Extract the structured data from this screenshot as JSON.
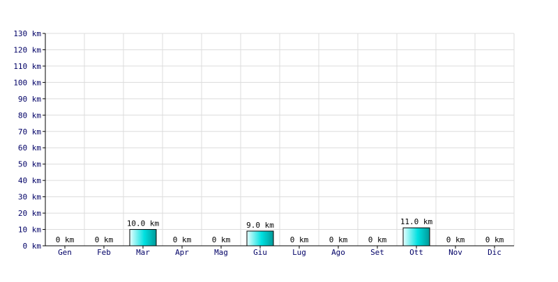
{
  "chart_data": {
    "type": "bar",
    "categories": [
      "Gen",
      "Feb",
      "Mar",
      "Apr",
      "Mag",
      "Giu",
      "Lug",
      "Ago",
      "Set",
      "Ott",
      "Nov",
      "Dic"
    ],
    "values": [
      0,
      0,
      10.0,
      0,
      0,
      9.0,
      0,
      0,
      0,
      11.0,
      0,
      0
    ],
    "data_labels": [
      "0 km",
      "0 km",
      "10.0 km",
      "0 km",
      "0 km",
      "9.0 km",
      "0 km",
      "0 km",
      "0 km",
      "11.0 km",
      "0 km",
      "0 km"
    ],
    "y_tick_labels": [
      "0 km",
      "10 km",
      "20 km",
      "30 km",
      "40 km",
      "50 km",
      "60 km",
      "70 km",
      "80 km",
      "90 km",
      "100 km",
      "110 km",
      "120 km",
      "130 km"
    ],
    "title": "",
    "xlabel": "",
    "ylabel": "",
    "ylim": [
      0,
      130
    ],
    "y_step": 10,
    "grid": true,
    "legend": "none",
    "colors": {
      "bar_light": "#e8ffff",
      "bar_mid": "#00e0e0",
      "bar_dark": "#009a9a",
      "bar_stroke": "#000000",
      "grid": "#dcdcdc",
      "axis": "#000000",
      "tick_text": "#000066"
    }
  }
}
